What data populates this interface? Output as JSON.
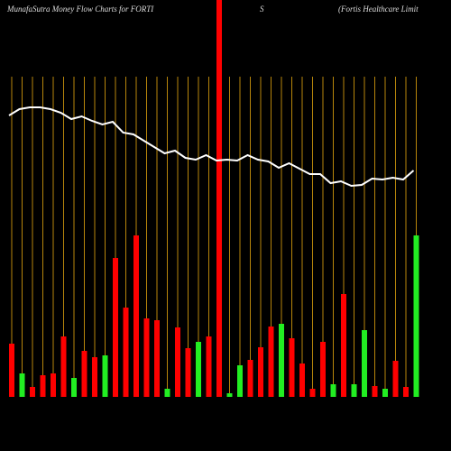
{
  "chart_data": {
    "type": "bar",
    "title": "MunafaSutra  Money Flow  Charts for FORTI",
    "title_part2": "S",
    "subtitle": "(Fortis Healthcare  Limit",
    "categories": [
      null,
      null,
      null,
      null,
      null,
      null,
      null,
      null,
      null,
      null,
      null,
      null,
      null,
      null,
      null,
      null,
      null,
      null,
      null,
      null,
      null,
      null,
      null,
      null,
      null,
      null,
      null,
      null,
      null,
      null,
      null,
      null,
      null,
      null,
      null,
      null,
      null,
      null,
      null,
      null
    ],
    "ylim": [
      0,
      440
    ],
    "series": [
      {
        "type": "bar",
        "values": [
          59,
          26,
          11,
          24,
          26,
          67,
          21,
          51,
          44,
          46,
          154,
          99,
          179,
          87,
          85,
          9,
          77,
          54,
          61,
          67,
          440,
          4,
          35,
          41,
          55,
          78,
          81,
          65,
          37,
          9,
          61,
          14,
          114,
          14,
          74,
          12,
          9,
          40,
          11,
          179
        ],
        "colors": [
          "#ff0000",
          "#22ee22",
          "#ff0000",
          "#ff0000",
          "#ff0000",
          "#ff0000",
          "#22ee22",
          "#ff0000",
          "#ff0000",
          "#22ee22",
          "#ff0000",
          "#ff0000",
          "#ff0000",
          "#ff0000",
          "#ff0000",
          "#22ee22",
          "#ff0000",
          "#ff0000",
          "#22ee22",
          "#ff0000",
          "#ff0000",
          "#22ee22",
          "#22ee22",
          "#ff0000",
          "#ff0000",
          "#ff0000",
          "#22ee22",
          "#ff0000",
          "#ff0000",
          "#ff0000",
          "#ff0000",
          "#22ee22",
          "#ff0000",
          "#22ee22",
          "#22ee22",
          "#ff0000",
          "#22ee22",
          "#ff0000",
          "#ff0000",
          "#22ee22"
        ]
      },
      {
        "type": "line",
        "color": "#ffffff",
        "values": [
          312,
          319,
          321,
          321,
          319,
          315,
          308,
          311,
          306,
          302,
          305,
          293,
          291,
          284,
          277,
          270,
          273,
          265,
          263,
          268,
          262,
          263,
          262,
          268,
          263,
          261,
          254,
          259,
          253,
          247,
          247,
          237,
          239,
          234,
          235,
          242,
          241,
          243,
          241,
          251
        ]
      }
    ]
  }
}
